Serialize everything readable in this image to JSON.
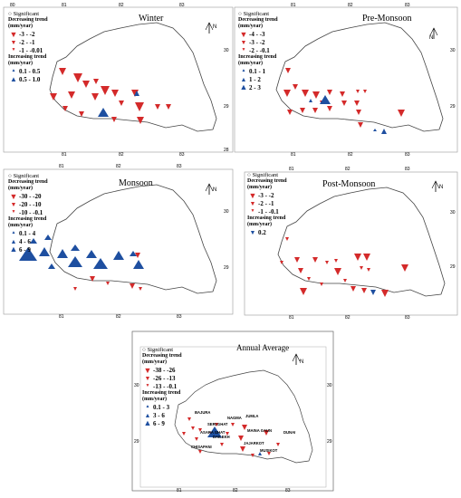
{
  "colors": {
    "decrease": "#d42a2a",
    "increase": "#1e4fa0",
    "boundary": "#444444"
  },
  "legend_common": {
    "significant": "Significant",
    "decreasing_header": "Decreasing trend",
    "increasing_header": "Increasing trend",
    "unit": "(mm/year)"
  },
  "panels": [
    {
      "title": "Winter",
      "north": "N",
      "dec_items": [
        "-3 - -2",
        "-2 - -1",
        "-1 - -0.01"
      ],
      "inc_items": [
        "0.1 - 0.5",
        "0.5 - 1.0"
      ],
      "x_ticks": [
        "80",
        "81",
        "82",
        "83"
      ],
      "x_ticks_bottom": [
        "81",
        "82",
        "83"
      ],
      "y_ticks": [
        "30",
        "29",
        "28"
      ]
    },
    {
      "title": "Pre-Monsoon",
      "north": "N",
      "dec_items": [
        "-4 - -3",
        "-3 - -2",
        "-2 - -0.1"
      ],
      "inc_items": [
        "0.1 - 1",
        "1 - 2",
        "2 - 3"
      ],
      "x_ticks": [
        "81",
        "82",
        "83"
      ],
      "x_ticks_bottom": [
        "81",
        "82",
        "83"
      ],
      "y_ticks": [
        "30",
        "29"
      ]
    },
    {
      "title": "Monsoon",
      "north": "N",
      "dec_items": [
        "-30 - -20",
        "-20 - -10",
        "-10 - -0.1"
      ],
      "inc_items": [
        "0.1 - 4",
        "4 - 6",
        "6 - 9"
      ],
      "x_ticks": [
        "81",
        "82",
        "83"
      ],
      "x_ticks_bottom": [
        "81",
        "82",
        "83"
      ],
      "y_ticks": [
        "30",
        "29"
      ]
    },
    {
      "title": "Post-Monsoon",
      "north": "N",
      "dec_items": [
        "-3 - -2",
        "-2 - -1",
        "-1 - -0.1"
      ],
      "inc_items": [
        "0.2"
      ],
      "x_ticks": [
        "81",
        "82",
        "83"
      ],
      "x_ticks_bottom": [
        "81",
        "82",
        "83"
      ],
      "y_ticks": [
        "30",
        "29"
      ]
    },
    {
      "title": "Annual Average",
      "north": "N",
      "dec_items": [
        "-38 - -26",
        "-26 - -13",
        "-13 - -0.1"
      ],
      "inc_items": [
        "0.1 - 3",
        "3 - 6",
        "6 - 9"
      ],
      "x_ticks": [
        "81",
        "82",
        "83"
      ],
      "y_ticks": [
        "30",
        "29"
      ]
    }
  ],
  "stations": [
    "BAJURA",
    "NAGMA",
    "JUMLA",
    "SERI GHAT",
    "ASARA GHAT",
    "DAILEKH",
    "MAINA GAUN",
    "DUNAI",
    "CHISAPANI",
    "JAJARKOT",
    "MUSIKOT"
  ]
}
